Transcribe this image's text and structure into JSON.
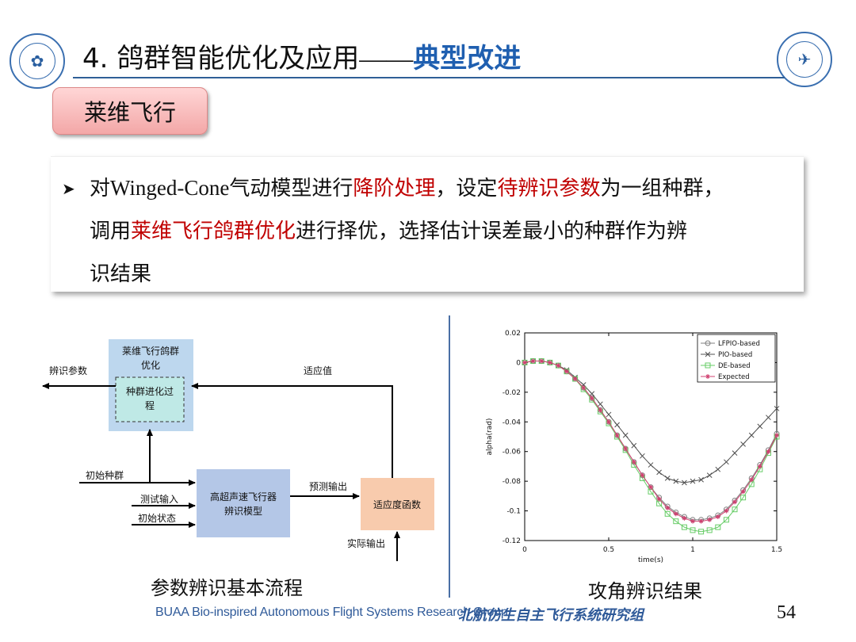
{
  "header": {
    "title_main": "4. 鸽群智能优化及应用",
    "title_dash": "——",
    "title_accent": "典型改进",
    "logo_left_icon": "university-lab-logo-icon",
    "logo_right_icon": "beihang-university-logo-icon"
  },
  "section": {
    "label": "莱维飞行"
  },
  "bullet": {
    "line1": [
      {
        "t": "对",
        "c": "n"
      },
      {
        "t": "Winged-Cone",
        "c": "en"
      },
      {
        "t": "气动模型进行",
        "c": "n"
      },
      {
        "t": "降阶处理",
        "c": "r"
      },
      {
        "t": "，设定",
        "c": "n"
      },
      {
        "t": "待辨识参数",
        "c": "r"
      },
      {
        "t": "为一组种群，",
        "c": "n"
      }
    ],
    "line2": [
      {
        "t": "调用",
        "c": "n"
      },
      {
        "t": "莱维飞行鸽群优化",
        "c": "r"
      },
      {
        "t": "进行择优，选择估计误差最小的种群作为辨",
        "c": "n"
      }
    ],
    "line3": [
      {
        "t": "识结果",
        "c": "n"
      }
    ]
  },
  "flowchart": {
    "caption": "参数辨识基本流程",
    "optimizer_title": "莱维飞行鸽群优化",
    "evolution_label": "种群进化过程",
    "model_label": "高超声速飞行器辨识模型",
    "fitness_label": "适应度函数",
    "label_output_params": "辨识参数",
    "label_fitness_value": "适应值",
    "label_initial_population": "初始种群",
    "label_test_input": "测试输入",
    "label_initial_state": "初始状态",
    "label_predicted_output": "预测输出",
    "label_actual_output": "实际输出"
  },
  "chart_caption": "攻角辨识结果",
  "chart_data": {
    "type": "line",
    "title": "",
    "xlabel": "time(s)",
    "ylabel": "alpha(rad)",
    "xlim": [
      0,
      1.5
    ],
    "ylim": [
      -0.12,
      0.02
    ],
    "xticks": [
      "0",
      "0.5",
      "1",
      "1.5"
    ],
    "yticks": [
      "0.02",
      "0",
      "-0.02",
      "-0.04",
      "-0.06",
      "-0.08",
      "-0.1",
      "-0.12"
    ],
    "legend_position": "top-right",
    "x": [
      0,
      0.05,
      0.1,
      0.15,
      0.2,
      0.25,
      0.3,
      0.35,
      0.4,
      0.45,
      0.5,
      0.55,
      0.6,
      0.65,
      0.7,
      0.75,
      0.8,
      0.85,
      0.9,
      0.95,
      1.0,
      1.05,
      1.1,
      1.15,
      1.2,
      1.25,
      1.3,
      1.35,
      1.4,
      1.45,
      1.5
    ],
    "series": [
      {
        "name": "LFPIO-based",
        "color": "#808080",
        "marker": "circle",
        "values": [
          0,
          0.001,
          0.001,
          0.0,
          -0.002,
          -0.006,
          -0.011,
          -0.017,
          -0.024,
          -0.032,
          -0.04,
          -0.049,
          -0.058,
          -0.067,
          -0.076,
          -0.084,
          -0.091,
          -0.097,
          -0.101,
          -0.104,
          -0.106,
          -0.106,
          -0.105,
          -0.103,
          -0.099,
          -0.093,
          -0.086,
          -0.078,
          -0.069,
          -0.059,
          -0.048
        ]
      },
      {
        "name": "PIO-based",
        "color": "#505050",
        "marker": "x",
        "values": [
          0,
          0.001,
          0.001,
          0.0,
          -0.002,
          -0.005,
          -0.01,
          -0.015,
          -0.021,
          -0.028,
          -0.035,
          -0.042,
          -0.049,
          -0.056,
          -0.063,
          -0.069,
          -0.074,
          -0.078,
          -0.08,
          -0.081,
          -0.08,
          -0.079,
          -0.076,
          -0.072,
          -0.067,
          -0.061,
          -0.055,
          -0.049,
          -0.043,
          -0.037,
          -0.031
        ]
      },
      {
        "name": "DE-based",
        "color": "#66cc66",
        "marker": "square",
        "values": [
          0,
          0.001,
          0.001,
          0.0,
          -0.002,
          -0.006,
          -0.011,
          -0.018,
          -0.025,
          -0.033,
          -0.041,
          -0.05,
          -0.059,
          -0.069,
          -0.078,
          -0.087,
          -0.095,
          -0.102,
          -0.107,
          -0.111,
          -0.113,
          -0.114,
          -0.113,
          -0.111,
          -0.106,
          -0.099,
          -0.091,
          -0.082,
          -0.072,
          -0.061,
          -0.05
        ]
      },
      {
        "name": "Expected",
        "color": "#d04070",
        "marker": "star",
        "values": [
          0,
          0.001,
          0.001,
          0.0,
          -0.002,
          -0.006,
          -0.011,
          -0.017,
          -0.024,
          -0.032,
          -0.04,
          -0.049,
          -0.058,
          -0.067,
          -0.076,
          -0.084,
          -0.092,
          -0.098,
          -0.102,
          -0.105,
          -0.107,
          -0.107,
          -0.106,
          -0.104,
          -0.1,
          -0.094,
          -0.087,
          -0.079,
          -0.07,
          -0.06,
          -0.049
        ]
      }
    ]
  },
  "footer": {
    "en": "BUAA Bio-inspired Autonomous Flight Systems Research Group",
    "cn": "北航仿生自主飞行系统研究组",
    "page": "54"
  },
  "colors": {
    "accent_blue": "#1f5fb0",
    "highlight_red": "#c00000",
    "optimizer_box": "#bdd7ee",
    "model_box": "#b4c7e7",
    "fitness_box": "#f8cbad"
  }
}
